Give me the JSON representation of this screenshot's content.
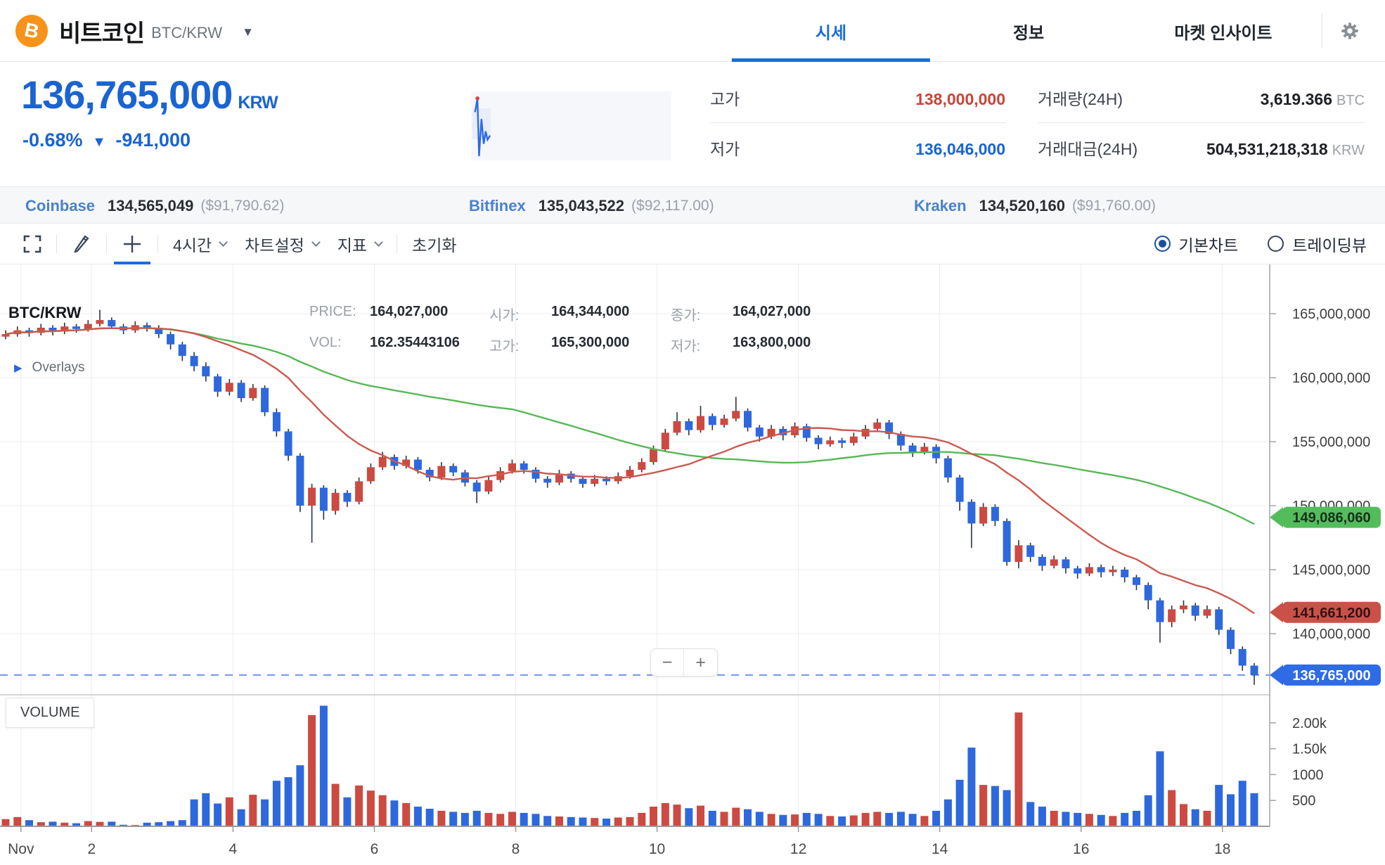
{
  "header": {
    "coin_symbol": "B",
    "coin_name": "비트코인",
    "pair": "BTC/KRW",
    "tabs": [
      {
        "label": "시세",
        "active": true
      },
      {
        "label": "정보",
        "active": false
      },
      {
        "label": "마켓 인사이트",
        "active": false
      }
    ]
  },
  "price_panel": {
    "price": "136,765,000",
    "currency": "KRW",
    "change_pct": "-0.68%",
    "change_arrow": "▼",
    "change_amt": "-941,000",
    "stats": [
      {
        "label": "고가",
        "value": "138,000,000",
        "color": "red"
      },
      {
        "label": "거래량(24H)",
        "value": "3,619.366",
        "unit": "BTC"
      },
      {
        "label": "저가",
        "value": "136,046,000",
        "color": "blue"
      },
      {
        "label": "거래대금(24H)",
        "value": "504,531,218,318",
        "unit": "KRW"
      }
    ],
    "sparkline": {
      "points": [
        [
          0.02,
          0.3
        ],
        [
          0.032,
          0.1
        ],
        [
          0.04,
          0.94
        ],
        [
          0.052,
          0.4
        ],
        [
          0.063,
          0.76
        ],
        [
          0.073,
          0.58
        ],
        [
          0.082,
          0.7
        ],
        [
          0.095,
          0.64
        ]
      ],
      "line_color": "#2e6be4",
      "dot_color": "#e04038"
    }
  },
  "ticker": [
    {
      "name": "Coinbase",
      "value": "134,565,049",
      "usd": "($91,790.62)"
    },
    {
      "name": "Bitfinex",
      "value": "135,043,522",
      "usd": "($92,117.00)"
    },
    {
      "name": "Kraken",
      "value": "134,520,160",
      "usd": "($91,760.00)"
    }
  ],
  "toolbar": {
    "interval": "4시간",
    "chart_settings": "차트설정",
    "indicators": "지표",
    "reset": "초기화",
    "radios": [
      {
        "label": "기본차트",
        "selected": true
      },
      {
        "label": "트레이딩뷰",
        "selected": false
      }
    ]
  },
  "chart": {
    "symbol": "BTC/KRW",
    "overlays_label": "Overlays",
    "volume_label": "VOLUME",
    "zoom_out": "−",
    "zoom_in": "+",
    "legend": {
      "price_label": "PRICE:",
      "price": "164,027,000",
      "open_label": "시가:",
      "open": "164,344,000",
      "close_label": "종가:",
      "close": "164,027,000",
      "vol_label": "VOL:",
      "vol": "162.35443106",
      "high_label": "고가:",
      "high": "165,300,000",
      "low_label": "저가:",
      "low": "163,800,000"
    },
    "tags": [
      {
        "text": "149,086,060",
        "value": 149.08606,
        "bg": "#53bd5c",
        "fg": "#16301a",
        "dashed": false
      },
      {
        "text": "141,661,200",
        "value": 141.6612,
        "bg": "#ca5148",
        "fg": "#331210",
        "dashed": false
      },
      {
        "text": "136,765,000",
        "value": 136.765,
        "bg": "#2e6be4",
        "fg": "#ffffff",
        "dashed": true
      }
    ]
  },
  "chart_data": {
    "type": "candlestick+volume",
    "price_unit": "million KRW",
    "interval": "4h",
    "start_day": 0.7833,
    "step_days": 0.166667,
    "up_color": "#cc4a41",
    "down_color": "#2e68dd",
    "ma": {
      "red_window": 14,
      "red_color": "#cc5a50",
      "green_window": 44,
      "green_color": "#56b856"
    },
    "y_ticks": [
      {
        "label": "165,000,000",
        "v": 165
      },
      {
        "label": "160,000,000",
        "v": 160
      },
      {
        "label": "155,000,000",
        "v": 155
      },
      {
        "label": "150,000,000",
        "v": 150
      },
      {
        "label": "145,000,000",
        "v": 145
      },
      {
        "label": "140,000,000",
        "v": 140
      }
    ],
    "vol_ticks": [
      {
        "label": "2.00k",
        "v": 2000
      },
      {
        "label": "1.50k",
        "v": 1500
      },
      {
        "label": "1000",
        "v": 1000
      },
      {
        "label": "500",
        "v": 500
      }
    ],
    "x_ticks": [
      {
        "label": "Nov",
        "day": 1
      },
      {
        "label": "2",
        "day": 2
      },
      {
        "label": "4",
        "day": 4
      },
      {
        "label": "6",
        "day": 6
      },
      {
        "label": "8",
        "day": 8
      },
      {
        "label": "10",
        "day": 10
      },
      {
        "label": "12",
        "day": 12
      },
      {
        "label": "14",
        "day": 14
      },
      {
        "label": "16",
        "day": 16
      },
      {
        "label": "18",
        "day": 18
      }
    ],
    "candles": [
      [
        163.2,
        163.7,
        163.0,
        163.4,
        140
      ],
      [
        163.4,
        164.0,
        163.2,
        163.7,
        180
      ],
      [
        163.7,
        163.9,
        163.2,
        163.5,
        120
      ],
      [
        163.5,
        164.2,
        163.3,
        163.9,
        80
      ],
      [
        163.9,
        164.1,
        163.3,
        163.6,
        90
      ],
      [
        163.6,
        164.3,
        163.4,
        164.0,
        70
      ],
      [
        164.0,
        164.2,
        163.5,
        163.8,
        60
      ],
      [
        163.8,
        164.5,
        163.6,
        164.2,
        100
      ],
      [
        164.2,
        165.3,
        164.0,
        164.5,
        85
      ],
      [
        164.5,
        164.7,
        163.8,
        164.0,
        90
      ],
      [
        164.0,
        164.2,
        163.4,
        163.7,
        30
      ],
      [
        163.7,
        164.4,
        163.5,
        164.1,
        25
      ],
      [
        164.1,
        164.3,
        163.6,
        163.9,
        70
      ],
      [
        163.9,
        164.1,
        163.1,
        163.4,
        80
      ],
      [
        163.4,
        163.6,
        162.2,
        162.6,
        100
      ],
      [
        162.6,
        162.8,
        161.3,
        161.7,
        120
      ],
      [
        161.7,
        162.0,
        160.5,
        160.9,
        520
      ],
      [
        160.9,
        161.2,
        159.7,
        160.1,
        640
      ],
      [
        160.1,
        160.3,
        158.5,
        158.9,
        440
      ],
      [
        158.9,
        159.9,
        158.6,
        159.6,
        560
      ],
      [
        159.6,
        159.8,
        158.1,
        158.4,
        330
      ],
      [
        158.4,
        159.5,
        158.2,
        159.2,
        610
      ],
      [
        159.2,
        159.4,
        157.0,
        157.3,
        520
      ],
      [
        157.3,
        157.6,
        155.4,
        155.8,
        880
      ],
      [
        155.8,
        156.0,
        153.5,
        153.9,
        950
      ],
      [
        153.9,
        154.1,
        149.5,
        150.0,
        1180
      ],
      [
        150.0,
        151.7,
        147.1,
        151.4,
        2150
      ],
      [
        151.4,
        151.6,
        148.9,
        149.6,
        2330
      ],
      [
        149.6,
        151.3,
        149.3,
        151.0,
        820
      ],
      [
        151.0,
        151.2,
        149.9,
        150.3,
        560
      ],
      [
        150.3,
        152.2,
        150.1,
        151.9,
        790
      ],
      [
        151.9,
        153.3,
        151.7,
        153.0,
        690
      ],
      [
        153.0,
        154.2,
        152.8,
        153.8,
        600
      ],
      [
        153.8,
        154.0,
        152.8,
        153.1,
        500
      ],
      [
        153.1,
        153.9,
        152.9,
        153.6,
        450
      ],
      [
        153.6,
        153.8,
        152.5,
        152.8,
        380
      ],
      [
        152.8,
        153.0,
        151.9,
        152.2,
        340
      ],
      [
        152.2,
        153.4,
        152.0,
        153.1,
        300
      ],
      [
        153.1,
        153.3,
        152.3,
        152.6,
        280
      ],
      [
        152.6,
        152.8,
        151.5,
        151.8,
        260
      ],
      [
        151.8,
        152.0,
        150.2,
        151.1,
        300
      ],
      [
        151.1,
        152.3,
        150.9,
        152.0,
        260
      ],
      [
        152.0,
        153.0,
        151.8,
        152.7,
        240
      ],
      [
        152.7,
        153.6,
        152.5,
        153.3,
        280
      ],
      [
        153.3,
        153.5,
        152.5,
        152.8,
        260
      ],
      [
        152.8,
        153.0,
        151.8,
        152.1,
        240
      ],
      [
        152.1,
        152.3,
        151.4,
        151.8,
        200
      ],
      [
        151.8,
        152.8,
        151.6,
        152.5,
        190
      ],
      [
        152.5,
        152.7,
        151.8,
        152.1,
        180
      ],
      [
        152.1,
        152.3,
        151.4,
        151.7,
        170
      ],
      [
        151.7,
        152.4,
        151.5,
        152.1,
        160
      ],
      [
        152.1,
        152.3,
        151.6,
        151.9,
        150
      ],
      [
        151.9,
        152.6,
        151.7,
        152.3,
        170
      ],
      [
        152.3,
        153.1,
        152.1,
        152.8,
        180
      ],
      [
        152.8,
        153.7,
        152.6,
        153.4,
        260
      ],
      [
        153.4,
        154.7,
        153.2,
        154.4,
        380
      ],
      [
        154.4,
        156.0,
        154.2,
        155.7,
        450
      ],
      [
        155.7,
        157.3,
        155.5,
        156.6,
        420
      ],
      [
        156.6,
        156.8,
        155.5,
        155.9,
        350
      ],
      [
        155.9,
        157.8,
        155.7,
        157.0,
        400
      ],
      [
        157.0,
        157.2,
        155.9,
        156.3,
        300
      ],
      [
        156.3,
        157.1,
        156.1,
        156.8,
        280
      ],
      [
        156.8,
        158.5,
        156.6,
        157.4,
        360
      ],
      [
        157.4,
        157.6,
        155.8,
        156.1,
        330
      ],
      [
        156.1,
        156.3,
        155.0,
        155.4,
        280
      ],
      [
        155.4,
        156.3,
        155.2,
        156.0,
        240
      ],
      [
        156.0,
        156.2,
        155.1,
        155.5,
        220
      ],
      [
        155.5,
        156.5,
        155.3,
        156.2,
        230
      ],
      [
        156.2,
        156.4,
        155.0,
        155.3,
        260
      ],
      [
        155.3,
        155.5,
        154.4,
        154.8,
        240
      ],
      [
        154.8,
        155.4,
        154.6,
        155.1,
        200
      ],
      [
        155.1,
        155.3,
        154.5,
        154.9,
        190
      ],
      [
        154.9,
        155.7,
        154.7,
        155.4,
        210
      ],
      [
        155.4,
        156.3,
        155.2,
        156.0,
        260
      ],
      [
        156.0,
        156.8,
        155.8,
        156.5,
        280
      ],
      [
        156.5,
        156.7,
        155.2,
        155.6,
        260
      ],
      [
        155.6,
        155.8,
        154.3,
        154.7,
        280
      ],
      [
        154.7,
        154.9,
        153.8,
        154.2,
        240
      ],
      [
        154.2,
        154.9,
        154.0,
        154.6,
        200
      ],
      [
        154.6,
        154.8,
        153.3,
        153.7,
        300
      ],
      [
        153.7,
        153.9,
        151.8,
        152.2,
        520
      ],
      [
        152.2,
        152.4,
        149.6,
        150.3,
        900
      ],
      [
        150.3,
        150.5,
        146.7,
        148.6,
        1520
      ],
      [
        148.6,
        150.2,
        148.4,
        149.9,
        800
      ],
      [
        149.9,
        150.1,
        148.4,
        148.8,
        780
      ],
      [
        148.8,
        149.0,
        145.3,
        145.6,
        700
      ],
      [
        145.6,
        147.3,
        145.1,
        146.9,
        2200
      ],
      [
        146.9,
        147.1,
        145.6,
        146.0,
        470
      ],
      [
        146.0,
        146.2,
        144.9,
        145.3,
        380
      ],
      [
        145.3,
        146.1,
        145.1,
        145.8,
        300
      ],
      [
        145.8,
        146.0,
        144.7,
        145.1,
        280
      ],
      [
        145.1,
        145.3,
        144.3,
        144.7,
        260
      ],
      [
        144.7,
        145.5,
        144.5,
        145.2,
        240
      ],
      [
        145.2,
        145.4,
        144.4,
        144.8,
        220
      ],
      [
        144.8,
        145.3,
        144.5,
        145.0,
        200
      ],
      [
        145.0,
        145.2,
        144.0,
        144.4,
        260
      ],
      [
        144.4,
        144.6,
        143.4,
        143.8,
        300
      ],
      [
        143.8,
        144.0,
        141.9,
        142.6,
        600
      ],
      [
        142.6,
        142.8,
        139.3,
        140.9,
        1450
      ],
      [
        140.9,
        142.2,
        140.5,
        141.9,
        700
      ],
      [
        141.9,
        142.6,
        141.6,
        142.2,
        430
      ],
      [
        142.2,
        142.4,
        141.0,
        141.4,
        330
      ],
      [
        141.4,
        142.2,
        141.2,
        141.9,
        300
      ],
      [
        141.9,
        142.1,
        139.9,
        140.3,
        800
      ],
      [
        140.3,
        140.5,
        138.4,
        138.8,
        620
      ],
      [
        138.8,
        139.0,
        137.1,
        137.5,
        880
      ],
      [
        137.5,
        137.7,
        136.0,
        136.765,
        640
      ]
    ]
  }
}
